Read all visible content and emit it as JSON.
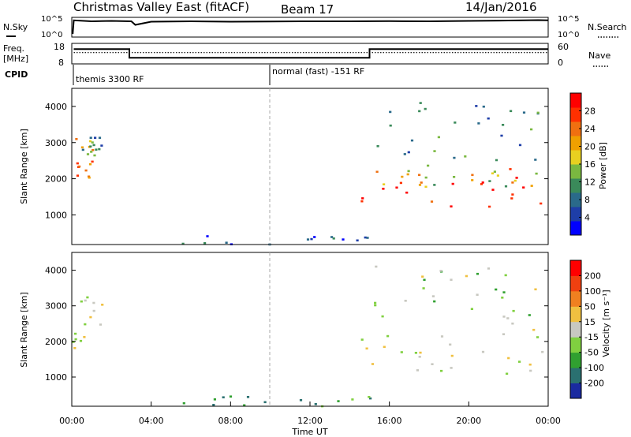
{
  "chart_data": [
    {
      "type": "line",
      "title": "Christmas Valley East (fitACF)",
      "beam_label": "Beam 17",
      "date": "14/Jan/2016",
      "panel": "noise",
      "left_label": "N.Sky",
      "right_label": "N.Search",
      "left_ticks": [
        "10^5",
        "10^0"
      ],
      "right_ticks": [
        "10^5",
        "10^0"
      ],
      "series": [
        {
          "x": [
            0,
            0.05,
            0.1,
            1,
            2,
            3,
            3.2,
            4,
            6,
            8,
            10,
            12,
            14,
            16,
            18,
            20,
            22,
            23.5,
            24
          ],
          "values": [
            0.2,
            0.2,
            0.85,
            0.8,
            0.82,
            0.8,
            0.62,
            0.78,
            0.8,
            0.78,
            0.79,
            0.8,
            0.8,
            0.81,
            0.8,
            0.82,
            0.84,
            0.86,
            0.85
          ]
        }
      ]
    },
    {
      "type": "line",
      "panel": "frequency",
      "left_label": "Freq.",
      "left_unit": "[MHz]",
      "right_label": "Nave",
      "left_ticks": [
        "18",
        "8"
      ],
      "right_ticks": [
        "60",
        "0"
      ],
      "ylim": [
        8,
        18
      ],
      "series": [
        {
          "x": [
            0.1,
            2.9,
            2.9,
            15,
            15,
            24
          ],
          "values": [
            15.2,
            15.2,
            11.0,
            11.0,
            15.2,
            15.2
          ]
        }
      ],
      "nave_level": 0.55
    },
    {
      "type": "table",
      "panel": "cpid",
      "label": "CPID",
      "entries": [
        {
          "start": 0.1,
          "text": "themis 3300 RF"
        },
        {
          "start": 10,
          "text": "normal (fast) -151 RF"
        }
      ]
    },
    {
      "type": "heatmap",
      "panel": "power",
      "ylabel": "Slant Range [km]",
      "ylim": [
        180,
        4500
      ],
      "yticks": [
        1000,
        2000,
        3000,
        4000
      ],
      "colorbar_label": "Power [dB]",
      "colorbar_ticks": [
        "28",
        "24",
        "20",
        "16",
        "12",
        "8",
        "4"
      ],
      "colors": [
        "#0000ff",
        "#1e3ea8",
        "#2a6a8a",
        "#3a8a5a",
        "#7ab840",
        "#e8d020",
        "#f0a000",
        "#f07010",
        "#ff3000",
        "#ff0000"
      ],
      "regions": [
        {
          "x": [
            0.0,
            1.0
          ],
          "y": [
            1800,
            3300
          ],
          "level": 0.72
        },
        {
          "x": [
            0.5,
            1.5
          ],
          "y": [
            2600,
            3400
          ],
          "level": 0.35
        },
        {
          "x": [
            14.5,
            24
          ],
          "y": [
            1100,
            2300
          ],
          "level": 0.85
        },
        {
          "x": [
            14.5,
            24
          ],
          "y": [
            1800,
            2400
          ],
          "level": 0.5
        },
        {
          "x": [
            15,
            23.5
          ],
          "y": [
            2500,
            4200
          ],
          "level": 0.3
        },
        {
          "x": [
            5.5,
            15
          ],
          "y": [
            200,
            500
          ],
          "level": 0.15
        }
      ]
    },
    {
      "type": "heatmap",
      "panel": "velocity",
      "ylabel": "Slant Range [km]",
      "ylim": [
        180,
        4500
      ],
      "yticks": [
        1000,
        2000,
        3000,
        4000
      ],
      "colorbar_label": "Velocity [m s⁻¹]",
      "colorbar_ticks": [
        "200",
        "100",
        "50",
        "15",
        "-15",
        "-50",
        "-100",
        "-200"
      ],
      "colors": [
        "#1a2aa0",
        "#2a7070",
        "#30a030",
        "#80d040",
        "#c8c8c0",
        "#f0c040",
        "#f08020",
        "#f04010",
        "#ff0000"
      ],
      "xlabel": "Time UT",
      "xticks": [
        "00:00",
        "04:00",
        "08:00",
        "12:00",
        "16:00",
        "20:00",
        "00:00"
      ],
      "xlim": [
        0,
        24
      ],
      "regions": [
        {
          "x": [
            0.0,
            1.5
          ],
          "y": [
            1800,
            3400
          ],
          "level": 0.5
        },
        {
          "x": [
            14.5,
            24
          ],
          "y": [
            1100,
            2400
          ],
          "level": 0.5
        },
        {
          "x": [
            15,
            23.5
          ],
          "y": [
            2500,
            4200
          ],
          "level": 0.45
        },
        {
          "x": [
            5.5,
            15
          ],
          "y": [
            200,
            500
          ],
          "level": 0.25
        }
      ]
    }
  ]
}
